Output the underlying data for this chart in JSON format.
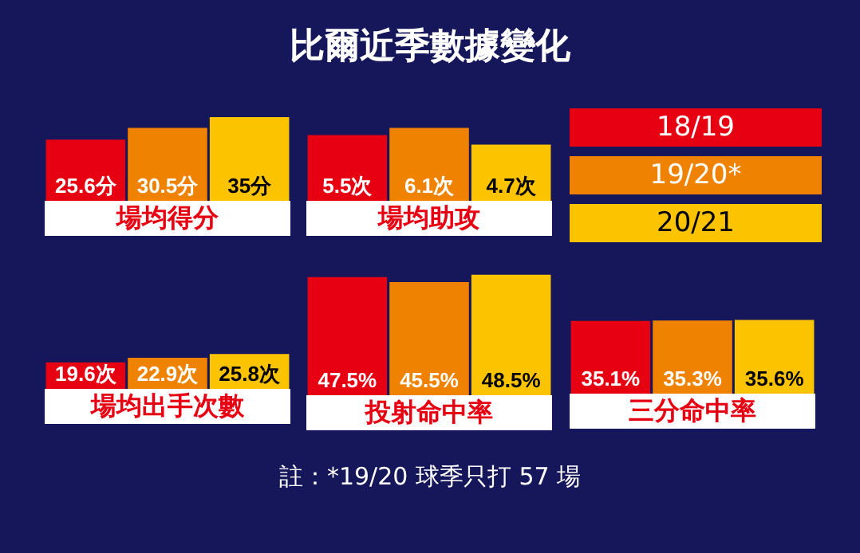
{
  "chart_data": [
    {
      "type": "bar",
      "xlabel": "場均得分",
      "categories": [
        null
      ],
      "series": [
        {
          "color": "#e60012",
          "values": [
            25.6
          ],
          "value_labels": [
            "25.6分"
          ]
        },
        {
          "color": "#ef8200",
          "values": [
            30.5
          ],
          "value_labels": [
            "30.5分"
          ]
        },
        {
          "color": "#fbc300",
          "values": [
            35
          ],
          "value_labels": [
            "35分"
          ]
        }
      ],
      "tick_labels": false
    },
    {
      "type": "bar",
      "title": "比爾近季數據變化",
      "xlabel": "場均助攻",
      "categories": [
        null
      ],
      "series": [
        {
          "name": "18/19",
          "color": "#e60012",
          "values": [
            5.5
          ],
          "value_labels": [
            "5.5次"
          ]
        },
        {
          "name": "19/20*",
          "color": "#ef8200",
          "values": [
            6.1
          ],
          "value_labels": [
            "6.1次"
          ]
        },
        {
          "name": "20/21",
          "color": "#fbc300",
          "values": [
            4.7
          ],
          "value_labels": [
            "4.7次"
          ]
        }
      ],
      "tick_labels": false,
      "legend": "right"
    },
    {
      "type": "bar",
      "xlabel": "場均出手次數",
      "categories": [
        null
      ],
      "series": [
        {
          "color": "#e60012",
          "values": [
            19.6
          ],
          "value_labels": [
            "19.6次"
          ]
        },
        {
          "color": "#ef8200",
          "values": [
            22.9
          ],
          "value_labels": [
            "22.9次"
          ]
        },
        {
          "color": "#fbc300",
          "values": [
            25.8
          ],
          "value_labels": [
            "25.8次"
          ]
        }
      ],
      "tick_labels": false,
      "annotations": [
        "註：*19/20 球季只打 57 場"
      ]
    },
    {
      "type": "bar",
      "xlabel": "投射命中率",
      "categories": [
        null
      ],
      "series": [
        {
          "color": "#e60012",
          "values": [
            47.5
          ],
          "value_labels": [
            "47.5%"
          ]
        },
        {
          "color": "#ef8200",
          "values": [
            45.5
          ],
          "value_labels": [
            "45.5%"
          ]
        },
        {
          "color": "#fbc300",
          "values": [
            48.5
          ],
          "value_labels": [
            "48.5%"
          ]
        }
      ],
      "tick_labels": false
    },
    {
      "type": "bar",
      "xlabel": "三分命中率",
      "categories": [
        null
      ],
      "series": [
        {
          "color": "#e60012",
          "values": [
            35.1
          ],
          "value_labels": [
            "35.1%"
          ]
        },
        {
          "color": "#ef8200",
          "values": [
            35.3
          ],
          "value_labels": [
            "35.3%"
          ]
        },
        {
          "color": "#fbc300",
          "values": [
            35.6
          ],
          "value_labels": [
            "35.6%"
          ]
        }
      ],
      "tick_labels": false
    }
  ]
}
